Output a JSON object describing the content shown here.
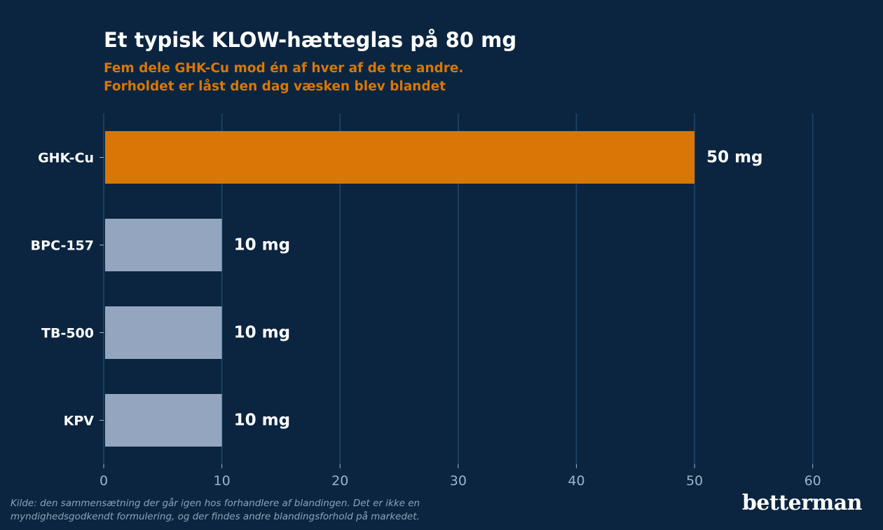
{
  "header": {
    "title": "Et typisk KLOW-hætteglas på 80 mg",
    "subtitle_line1": "Fem dele GHK-Cu mod én af hver af de tre andre.",
    "subtitle_line2": "Forholdet er låst den dag væsken blev blandet"
  },
  "footer": {
    "source_line1": "Kilde: den sammensætning der går igen hos forhandlere af blandingen. Det er ikke en",
    "source_line2": "myndighedsgodkendt formulering, og der findes andre blandingsforhold på markedet.",
    "brand": "betterman"
  },
  "colors": {
    "background": "#0b2540",
    "highlight": "#d97706",
    "bar": "#94a6bf",
    "grid": "#1f4468",
    "tick_text": "#9fb2c8",
    "label_text": "#ffffff"
  },
  "chart_data": {
    "type": "bar",
    "orientation": "horizontal",
    "categories": [
      "GHK-Cu",
      "BPC-157",
      "TB-500",
      "KPV"
    ],
    "values": [
      50,
      10,
      10,
      10
    ],
    "data_labels": [
      "50 mg",
      "10 mg",
      "10 mg",
      "10 mg"
    ],
    "highlight_category": "GHK-Cu",
    "xlim": [
      0,
      65
    ],
    "xticks": [
      0,
      10,
      20,
      30,
      40,
      50,
      60
    ],
    "xlabel": "",
    "ylabel": "",
    "grid": "vertical"
  }
}
